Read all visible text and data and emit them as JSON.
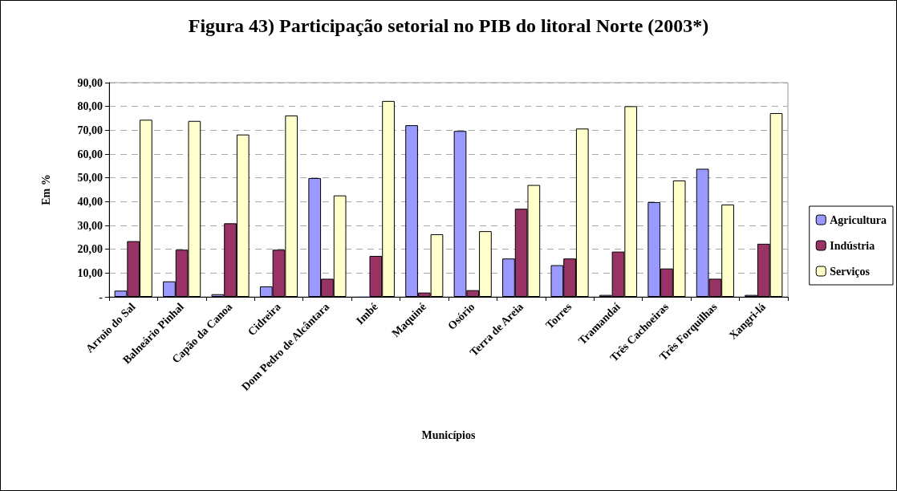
{
  "chart_data": {
    "type": "bar",
    "title": "Figura 43) Participação setorial no PIB do litoral Norte (2003*)",
    "xlabel": "Municípios",
    "ylabel": "Em %",
    "categories": [
      "Arroio do Sal",
      "Balneário Pinhal",
      "Capão da Canoa",
      "Cidreira",
      "Dom Pedro de Alcântara",
      "Imbé",
      "Maquiné",
      "Osório",
      "Terra de Areia",
      "Torres",
      "Tramandaí",
      "Três Cachoeiras",
      "Três Forquilhas",
      "Xangri-lá"
    ],
    "series": [
      {
        "name": "Agricultura",
        "color": "#9999ff",
        "values": [
          2.6,
          6.5,
          1.1,
          4.4,
          49.9,
          0.2,
          72.1,
          69.7,
          16.1,
          13.3,
          0.8,
          39.8,
          53.8,
          0.8
        ]
      },
      {
        "name": "Indústria",
        "color": "#993366",
        "values": [
          23.4,
          19.8,
          30.9,
          19.8,
          7.6,
          17.2,
          1.8,
          2.8,
          37.0,
          16.1,
          19.0,
          11.9,
          7.6,
          22.3
        ]
      },
      {
        "name": "Serviços",
        "color": "#ffffcc",
        "values": [
          74.4,
          73.9,
          68.2,
          76.2,
          42.6,
          82.3,
          26.3,
          27.6,
          47.0,
          70.7,
          80.1,
          48.9,
          38.8,
          77.2
        ]
      }
    ],
    "ylim": [
      0,
      90
    ],
    "yticks": [
      {
        "value": 0,
        "label": "-"
      },
      {
        "value": 10,
        "label": "10,00"
      },
      {
        "value": 20,
        "label": "20,00"
      },
      {
        "value": 30,
        "label": "30,00"
      },
      {
        "value": 40,
        "label": "40,00"
      },
      {
        "value": 50,
        "label": "50,00"
      },
      {
        "value": 60,
        "label": "60,00"
      },
      {
        "value": 70,
        "label": "70,00"
      },
      {
        "value": 80,
        "label": "80,00"
      },
      {
        "value": 90,
        "label": "90,00"
      }
    ],
    "grid": "y",
    "legend": "right"
  }
}
